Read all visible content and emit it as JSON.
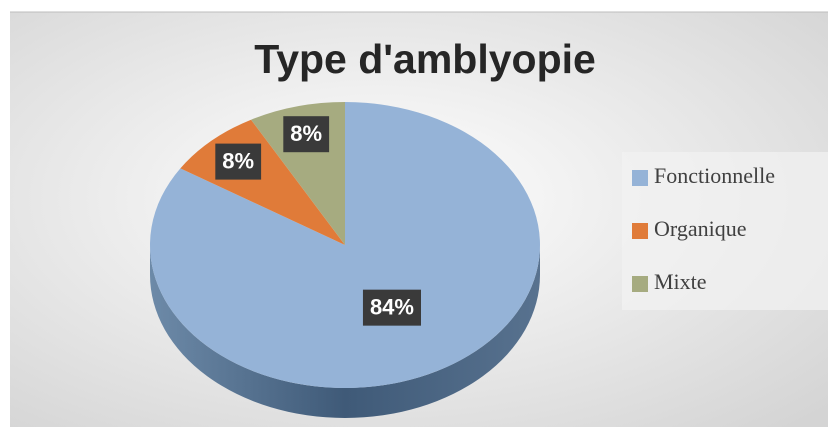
{
  "chart_data": {
    "type": "pie",
    "title": "Type d'amblyopie",
    "categories": [
      "Fonctionnelle",
      "Organique",
      "Mixte"
    ],
    "values": [
      84,
      8,
      8
    ],
    "value_labels": [
      "84%",
      "8%",
      "8%"
    ],
    "colors": [
      "#95b3d7",
      "#e07b39",
      "#a6ab80"
    ],
    "legend": "right"
  }
}
